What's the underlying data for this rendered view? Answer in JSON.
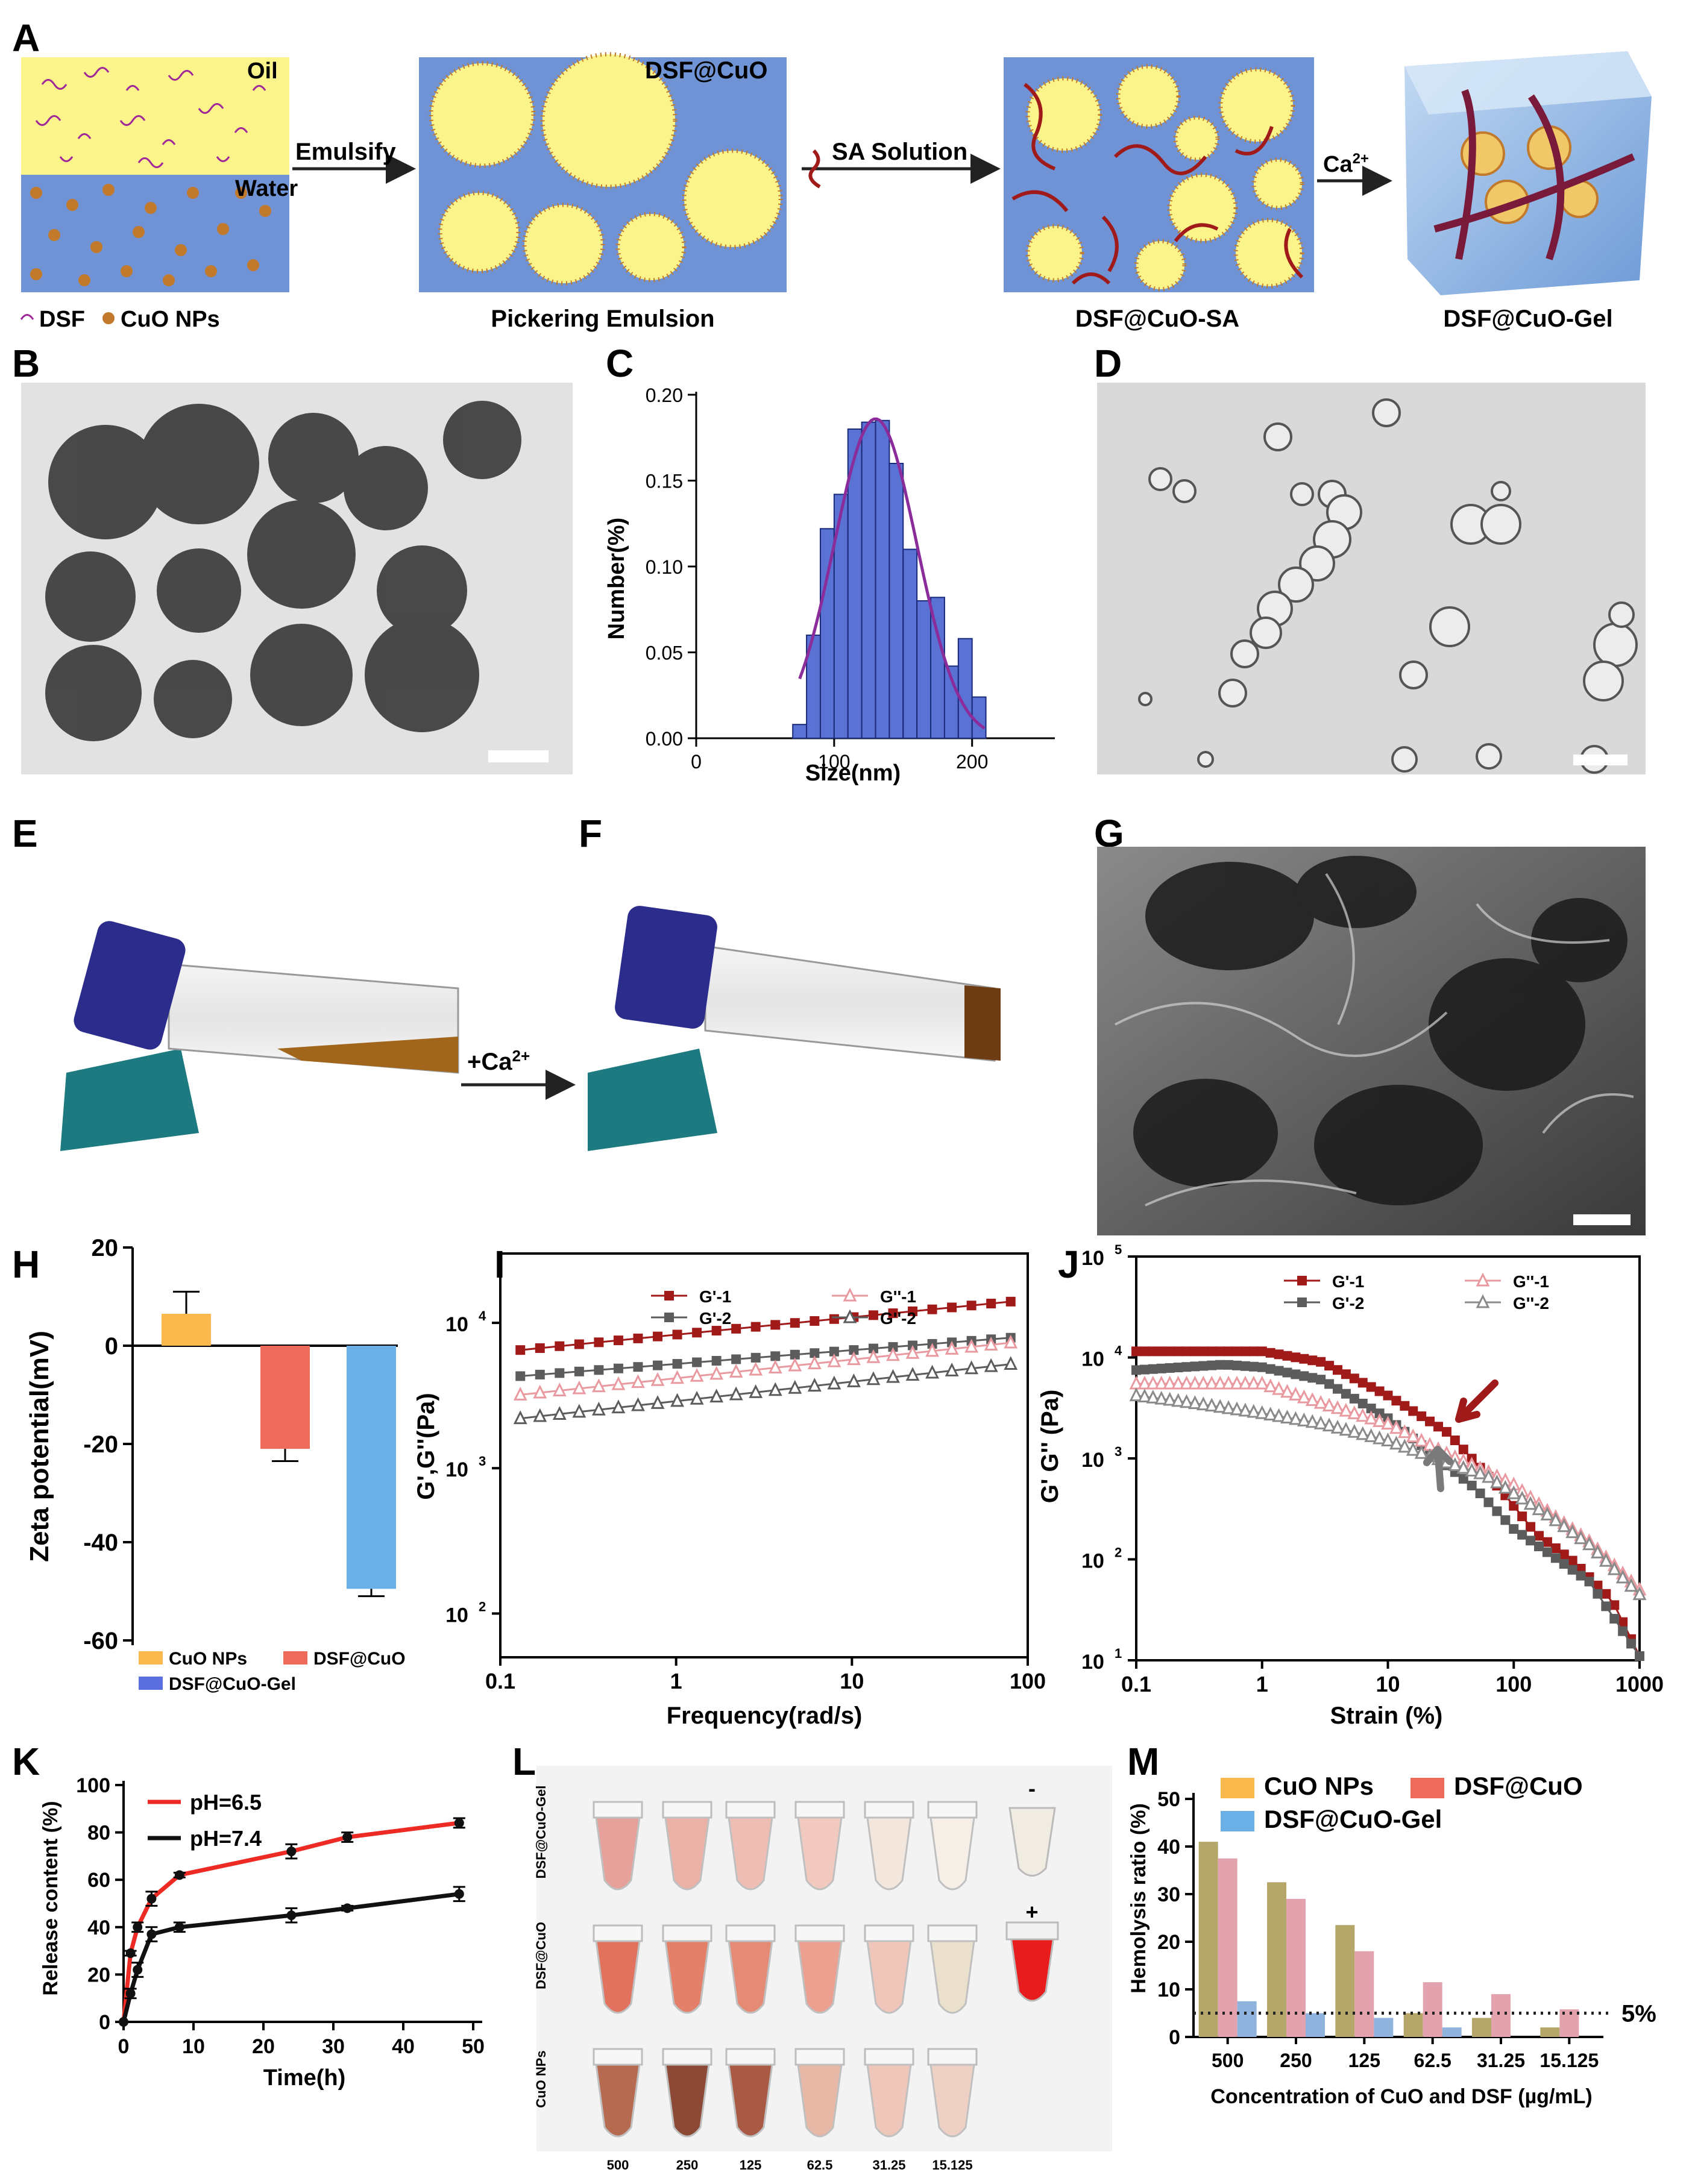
{
  "panel_labels": [
    "A",
    "B",
    "C",
    "D",
    "E",
    "F",
    "G",
    "H",
    "I",
    "J",
    "K",
    "L",
    "M"
  ],
  "schematic": {
    "oil": "Oil",
    "water": "Water",
    "emulsify": "Emulsify",
    "emulsion_tag": "DSF@CuO",
    "sa_solution": "SA Solution",
    "ca_arrow": "Ca",
    "ca_sup": "2+",
    "legend_dsf": "DSF",
    "legend_cuo": "CuO NPs",
    "cap_pickering": "Pickering Emulsion",
    "cap_sa": "DSF@CuO-SA",
    "cap_gel": "DSF@CuO-Gel",
    "colors": {
      "oil": "#fbf48a",
      "water": "#6f93d4",
      "np": "#c17a2c",
      "dsf": "#a0289a",
      "sa": "#a11a1a"
    }
  },
  "photo_ef": {
    "arrow_label": "+Ca",
    "arrow_sup": "2+"
  },
  "chart_data": [
    {
      "panel": "C",
      "type": "bar",
      "xlabel": "Size(nm)",
      "ylabel": "Number(%)",
      "xlim": [
        0,
        260
      ],
      "ylim": [
        0,
        0.2
      ],
      "x_ticks": [
        "0",
        "100",
        "200"
      ],
      "y_ticks": [
        "0.00",
        "0.05",
        "0.10",
        "0.15",
        "0.20"
      ],
      "bin_centers": [
        75,
        85,
        95,
        105,
        115,
        125,
        135,
        145,
        155,
        165,
        175,
        185,
        195,
        205
      ],
      "values": [
        0.008,
        0.06,
        0.122,
        0.142,
        0.18,
        0.184,
        0.185,
        0.16,
        0.11,
        0.08,
        0.082,
        0.042,
        0.058,
        0.024
      ],
      "fit_curve": true,
      "colors": {
        "bar": "#5a72d4",
        "fit": "#8b2c9b"
      }
    },
    {
      "panel": "H",
      "type": "bar",
      "ylabel": "Zeta potential(mV)",
      "ylim": [
        -60,
        20
      ],
      "y_ticks": [
        "20",
        "0",
        "-20",
        "-40",
        "-60"
      ],
      "categories": [
        "CuO NPs",
        "DSF@CuO",
        "DSF@CuO-Gel"
      ],
      "values": [
        6.5,
        -21.0,
        -49.5
      ],
      "errors": [
        4.5,
        2.5,
        1.5
      ],
      "colors": [
        "#fbb84c",
        "#ee6a5a",
        "#6ab0e6"
      ],
      "legend_swatches": [
        "#fbb84c",
        "#ee6a5a",
        "#5b6ee0"
      ],
      "legend": [
        "CuO NPs",
        "DSF@CuO",
        "DSF@CuO-Gel"
      ]
    },
    {
      "panel": "I",
      "type": "line",
      "xlabel": "Frequency(rad/s)",
      "ylabel": "G',G''(Pa)",
      "x_scale": "log",
      "y_scale": "log",
      "xlim": [
        0.1,
        100
      ],
      "ylim": [
        50,
        30000
      ],
      "x_ticks": [
        "0.1",
        "1",
        "10",
        "100"
      ],
      "y_ticks": [
        "10",
        "10",
        "10"
      ],
      "y_tick_exp": [
        "2",
        "3",
        "4"
      ],
      "series": [
        {
          "name": "G'-1",
          "from": 6500,
          "to": 14000,
          "color": "#a11a1a",
          "marker": "square"
        },
        {
          "name": "G'-2",
          "from": 4300,
          "to": 7900,
          "color": "#5c5c5c",
          "marker": "square"
        },
        {
          "name": "G''-1",
          "from": 3200,
          "to": 7300,
          "color": "#e89aa0",
          "marker": "triangle"
        },
        {
          "name": "G''-2",
          "from": 2200,
          "to": 5200,
          "color": "#5c5c5c",
          "marker": "triangle"
        }
      ]
    },
    {
      "panel": "J",
      "type": "line",
      "xlabel": "Strain (%)",
      "ylabel": "G' G'' (Pa)",
      "x_scale": "log",
      "y_scale": "log",
      "xlim": [
        0.1,
        1000
      ],
      "ylim": [
        10,
        100000
      ],
      "x_ticks": [
        "0.1",
        "1",
        "10",
        "100",
        "1000"
      ],
      "y_ticks": [
        "10",
        "10",
        "10",
        "10",
        "10"
      ],
      "y_tick_exp": [
        "1",
        "2",
        "3",
        "4",
        "5"
      ],
      "series": [
        {
          "name": "G'-1",
          "color": "#a11a1a",
          "marker": "square",
          "points": [
            [
              0.1,
              11500
            ],
            [
              1,
              11500
            ],
            [
              3,
              9000
            ],
            [
              10,
              4200
            ],
            [
              30,
              1800
            ],
            [
              50,
              900
            ],
            [
              80,
              480
            ],
            [
              150,
              180
            ],
            [
              300,
              95
            ],
            [
              600,
              40
            ],
            [
              1000,
              11
            ]
          ]
        },
        {
          "name": "G'-2",
          "color": "#5c5c5c",
          "marker": "square",
          "points": [
            [
              0.1,
              7500
            ],
            [
              0.5,
              8500
            ],
            [
              1,
              8000
            ],
            [
              3,
              6000
            ],
            [
              10,
              2500
            ],
            [
              25,
              1000
            ],
            [
              50,
              500
            ],
            [
              100,
              200
            ],
            [
              200,
              110
            ],
            [
              400,
              60
            ],
            [
              1000,
              11
            ]
          ]
        },
        {
          "name": "G''-1",
          "color": "#e89aa0",
          "marker": "triangle",
          "points": [
            [
              0.1,
              5500
            ],
            [
              1,
              5500
            ],
            [
              3,
              3500
            ],
            [
              10,
              2200
            ],
            [
              30,
              1100
            ],
            [
              60,
              750
            ],
            [
              100,
              550
            ],
            [
              200,
              280
            ],
            [
              400,
              150
            ],
            [
              1000,
              50
            ]
          ]
        },
        {
          "name": "G''-2",
          "color": "#8a8a8a",
          "marker": "triangle",
          "points": [
            [
              0.1,
              4200
            ],
            [
              0.3,
              3500
            ],
            [
              1,
              2800
            ],
            [
              3,
              2200
            ],
            [
              10,
              1500
            ],
            [
              30,
              900
            ],
            [
              60,
              680
            ],
            [
              100,
              450
            ],
            [
              200,
              260
            ],
            [
              400,
              140
            ],
            [
              1000,
              45
            ]
          ]
        }
      ],
      "annotations": [
        "red arrow at G'/G''-1 crossover",
        "gray arrow at G'/G''-2 crossover"
      ]
    },
    {
      "panel": "K",
      "type": "line",
      "xlabel": "Time(h)",
      "ylabel": "Release content (%)",
      "xlim": [
        0,
        50
      ],
      "ylim": [
        0,
        100
      ],
      "x_ticks": [
        "0",
        "10",
        "20",
        "30",
        "40",
        "50"
      ],
      "y_ticks": [
        "0",
        "20",
        "40",
        "60",
        "80",
        "100"
      ],
      "series": [
        {
          "name": "pH=6.5",
          "color": "#ee2a24",
          "x": [
            0,
            1,
            2,
            4,
            8,
            24,
            32,
            48
          ],
          "y": [
            0,
            29,
            40,
            52,
            62,
            72,
            78,
            84
          ],
          "err": [
            0,
            1,
            2,
            3,
            1,
            3,
            2,
            2
          ]
        },
        {
          "name": "pH=7.4",
          "color": "#111111",
          "x": [
            0,
            1,
            2,
            4,
            8,
            24,
            32,
            48
          ],
          "y": [
            0,
            12,
            22,
            37,
            40,
            45,
            48,
            54
          ],
          "err": [
            0,
            2,
            3,
            3,
            2,
            3,
            1,
            3
          ]
        }
      ]
    },
    {
      "panel": "M",
      "type": "bar",
      "xlabel": "Concentration of CuO and DSF (µg/mL)",
      "ylabel": "Hemolysis ratio (%)",
      "ylim": [
        0,
        50
      ],
      "y_ticks": [
        "0",
        "10",
        "20",
        "30",
        "40",
        "50"
      ],
      "categories": [
        "500",
        "250",
        "125",
        "62.5",
        "31.25",
        "15.125"
      ],
      "series": [
        {
          "name": "CuO NPs",
          "values": [
            41,
            32.5,
            23.5,
            5,
            4,
            2
          ],
          "color": "#b5a66a",
          "legend_color": "#fbb84c"
        },
        {
          "name": "DSF@CuO",
          "values": [
            37.5,
            29,
            18,
            11.5,
            9,
            5.8
          ],
          "color": "#e3a3ae",
          "legend_color": "#ee6a5a"
        },
        {
          "name": "DSF@CuO-Gel",
          "values": [
            7.5,
            5,
            4,
            2,
            0,
            0
          ],
          "color": "#8fb3dd",
          "legend_color": "#6ab0e6"
        }
      ],
      "threshold": 5,
      "threshold_label": "5%"
    }
  ],
  "panel_l": {
    "row_labels": [
      "DSF@CuO-Gel",
      "DSF@CuO",
      "CuO NPs"
    ],
    "col_labels": [
      "500",
      "250",
      "125",
      "62.5",
      "31.25",
      "15.125"
    ],
    "neg": "-",
    "pos": "+"
  }
}
